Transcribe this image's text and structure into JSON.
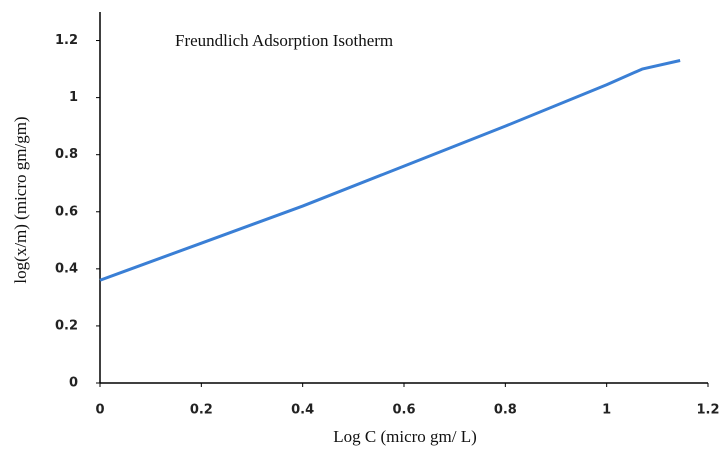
{
  "chart_data": {
    "type": "line",
    "title": "Freundlich Adsorption Isotherm",
    "x_label": "Log  C (micro gm/ L)",
    "y_label": "log(x/m) (micro gm/gm)",
    "x": [
      0,
      0.2,
      0.4,
      0.6,
      0.8,
      1.0,
      1.07,
      1.145
    ],
    "series": [
      {
        "color": "#3a7fd5",
        "values": [
          0.36,
          0.49,
          0.62,
          0.76,
          0.9,
          1.045,
          1.1,
          1.13
        ]
      }
    ],
    "xlim": [
      0,
      1.2
    ],
    "xticks": [
      0,
      0.2,
      0.4,
      0.6,
      0.8,
      1,
      1.2
    ],
    "ylim": [
      0,
      1.3
    ],
    "yticks": [
      0,
      0.2,
      0.4,
      0.6,
      0.8,
      1,
      1.2
    ],
    "grid": false
  }
}
